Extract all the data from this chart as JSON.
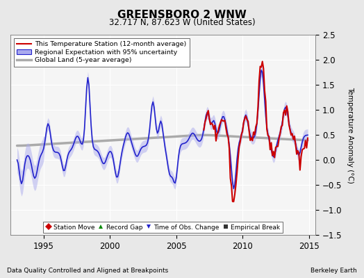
{
  "title": "GREENSBORO 2 WNW",
  "subtitle": "32.717 N, 87.623 W (United States)",
  "ylabel": "Temperature Anomaly (°C)",
  "xlabel_left": "Data Quality Controlled and Aligned at Breakpoints",
  "xlabel_right": "Berkeley Earth",
  "ylim": [
    -1.5,
    2.5
  ],
  "xlim": [
    1992.5,
    2015.5
  ],
  "xticks": [
    1995,
    2000,
    2005,
    2010,
    2015
  ],
  "yticks": [
    -1.5,
    -1.0,
    -0.5,
    0.0,
    0.5,
    1.0,
    1.5,
    2.0,
    2.5
  ],
  "fig_bg_color": "#e8e8e8",
  "plot_bg_color": "#f5f5f5",
  "grid_color": "#ffffff",
  "station_color": "#cc0000",
  "regional_color": "#2222cc",
  "regional_band_color": "#aaaaee",
  "global_color": "#aaaaaa",
  "station_lw": 1.5,
  "regional_lw": 1.2,
  "global_lw": 2.5,
  "legend_items": [
    {
      "label": "This Temperature Station (12-month average)",
      "color": "#cc0000",
      "lw": 1.5
    },
    {
      "label": "Regional Expectation with 95% uncertainty",
      "color": "#2222cc",
      "lw": 1.2
    },
    {
      "label": "Global Land (5-year average)",
      "color": "#aaaaaa",
      "lw": 2.5
    }
  ],
  "legend_markers": [
    {
      "label": "Station Move",
      "marker": "D",
      "color": "#cc0000"
    },
    {
      "label": "Record Gap",
      "marker": "^",
      "color": "#008800"
    },
    {
      "label": "Time of Obs. Change",
      "marker": "v",
      "color": "#2222cc"
    },
    {
      "label": "Empirical Break",
      "marker": "s",
      "color": "#333333"
    }
  ]
}
